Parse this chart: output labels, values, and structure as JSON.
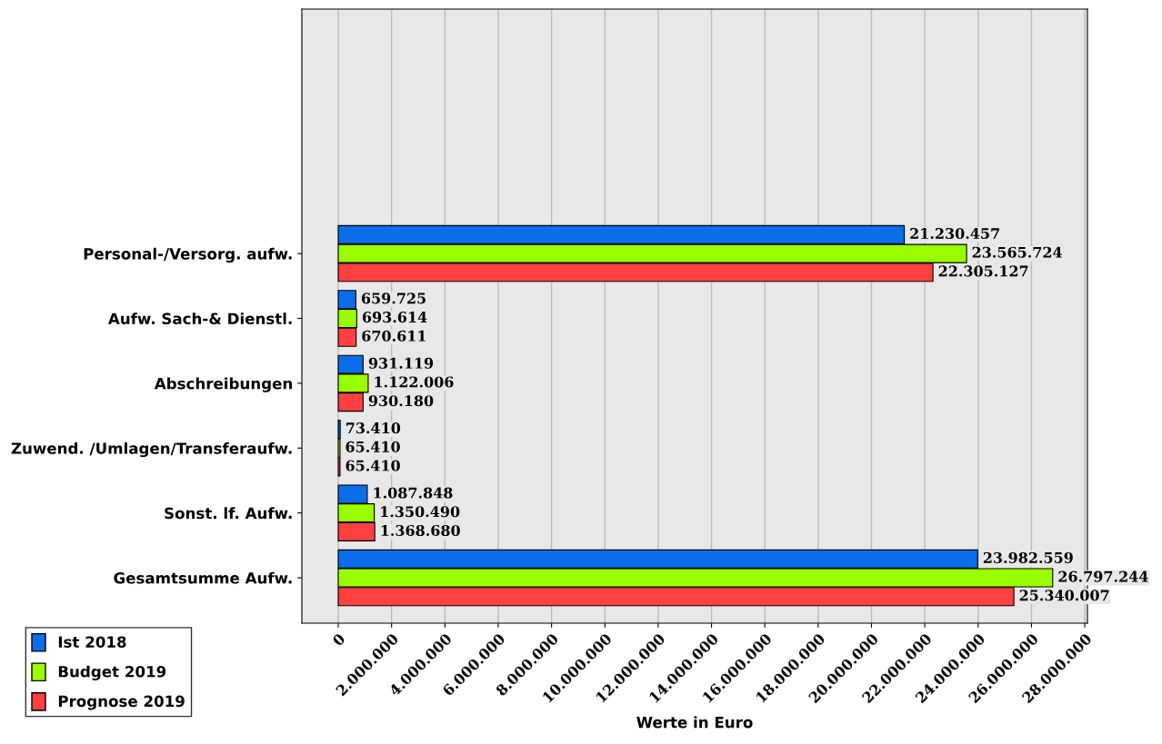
{
  "chart_data": {
    "type": "bar",
    "orientation": "horizontal",
    "xlabel": "Werte in Euro",
    "categories": [
      "Personal-/Versorg. aufw.",
      "Aufw. Sach-& Dienstl.",
      "Abschreibungen",
      "Zuwend. /Umlagen/Transferaufw.",
      "Sonst. lf. Aufw.",
      "Gesamtsumme Aufw."
    ],
    "series": [
      {
        "name": "Ist 2018",
        "color": "#0a6ee8",
        "values": [
          21230457,
          659725,
          931119,
          73410,
          1087848,
          23982559
        ],
        "value_labels": [
          "21.230.457",
          "659.725",
          "931.119",
          "73.410",
          "1.087.848",
          "23.982.559"
        ]
      },
      {
        "name": "Budget 2019",
        "color": "#99ff00",
        "values": [
          23565724,
          693614,
          1122006,
          65410,
          1350490,
          26797244
        ],
        "value_labels": [
          "23.565.724",
          "693.614",
          "1.122.006",
          "65.410",
          "1.350.490",
          "26.797.244"
        ]
      },
      {
        "name": "Prognose 2019",
        "color": "#ff4040",
        "values": [
          22305127,
          670611,
          930180,
          65410,
          1368680,
          25340007
        ],
        "value_labels": [
          "22.305.127",
          "670.611",
          "930.180",
          "65.410",
          "1.368.680",
          "25.340.007"
        ]
      }
    ],
    "xlim": [
      -1365000,
      28100000
    ],
    "xticks": [
      0,
      {
        "value": 2000000,
        "label": "2.000.000"
      },
      {
        "value": 4000000,
        "label": "4.000.000"
      },
      {
        "value": 6000000,
        "label": "6.000.000"
      },
      {
        "value": 8000000,
        "label": "8.000.000"
      },
      {
        "value": 10000000,
        "label": "10.000.000"
      },
      {
        "value": 12000000,
        "label": "12.000.000"
      },
      {
        "value": 14000000,
        "label": "14.000.000"
      },
      {
        "value": 16000000,
        "label": "16.000.000"
      },
      {
        "value": 18000000,
        "label": "18.000.000"
      },
      {
        "value": 20000000,
        "label": "20.000.000"
      },
      {
        "value": 22000000,
        "label": "22.000.000"
      },
      {
        "value": 24000000,
        "label": "24.000.000"
      },
      {
        "value": 26000000,
        "label": "26.000.000"
      },
      {
        "value": 28000000,
        "label": "28.000.000"
      }
    ],
    "grid": "x",
    "legend": "bottom left"
  }
}
